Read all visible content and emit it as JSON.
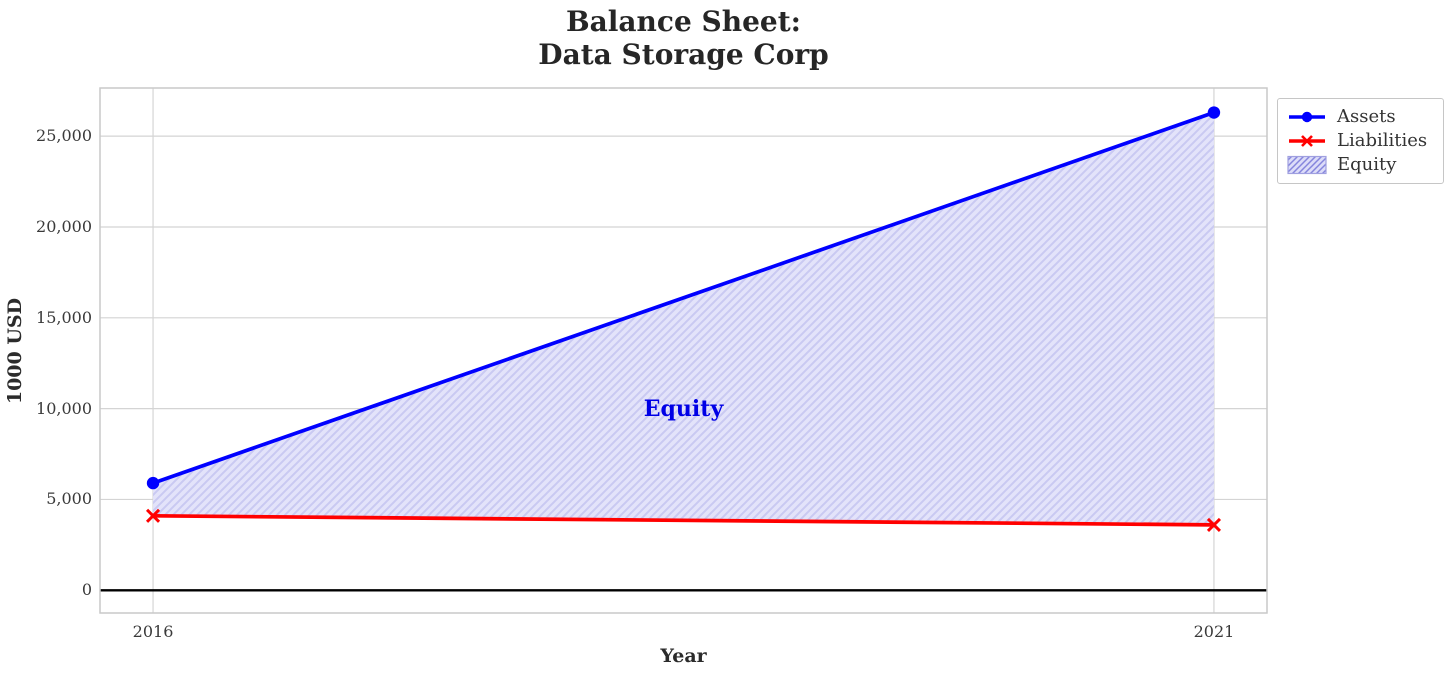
{
  "title": {
    "line1": "Balance Sheet:",
    "line2": "Data Storage Corp"
  },
  "chart_data": {
    "type": "line",
    "title": "Balance Sheet:\nData Storage Corp",
    "title_lines": [
      "Balance Sheet:",
      "Data Storage Corp"
    ],
    "xlabel": "Year",
    "ylabel": "1000 USD",
    "x": [
      2016,
      2021
    ],
    "series": [
      {
        "name": "Assets",
        "color": "#0000ff",
        "marker": "circle",
        "values": [
          5900,
          26300
        ]
      },
      {
        "name": "Liabilities",
        "color": "#ff0000",
        "marker": "x",
        "values": [
          4100,
          3600
        ]
      }
    ],
    "fill_between": {
      "name": "Equity",
      "between": [
        "Assets",
        "Liabilities"
      ],
      "hatch": "///",
      "fill_color": "#e3e3fa",
      "hatch_color": "#c9c9f2",
      "legend_fill": "#dcdcf8",
      "legend_hatch": "#8585dd",
      "legend_edge": "#a0a0e0",
      "annotation": {
        "text": "Equity",
        "x": 2018.5,
        "y": 10000,
        "color": "#0000e6"
      }
    },
    "xlim": [
      2015.75,
      2021.25
    ],
    "ylim": [
      -1250,
      27650
    ],
    "xticks": [
      2016,
      2021
    ],
    "xtick_labels": [
      "2016",
      "2021"
    ],
    "yticks": [
      0,
      5000,
      10000,
      15000,
      20000,
      25000
    ],
    "ytick_labels": [
      "0",
      "5,000",
      "10,000",
      "15,000",
      "20,000",
      "25,000"
    ],
    "grid": true,
    "grid_color": "#d4d4d4",
    "spine_color": "#c9c9c9",
    "zero_line": true,
    "zero_line_color": "#000000",
    "legend_position": "upper-right-outside",
    "legend_items": [
      "Assets",
      "Liabilities",
      "Equity"
    ]
  }
}
